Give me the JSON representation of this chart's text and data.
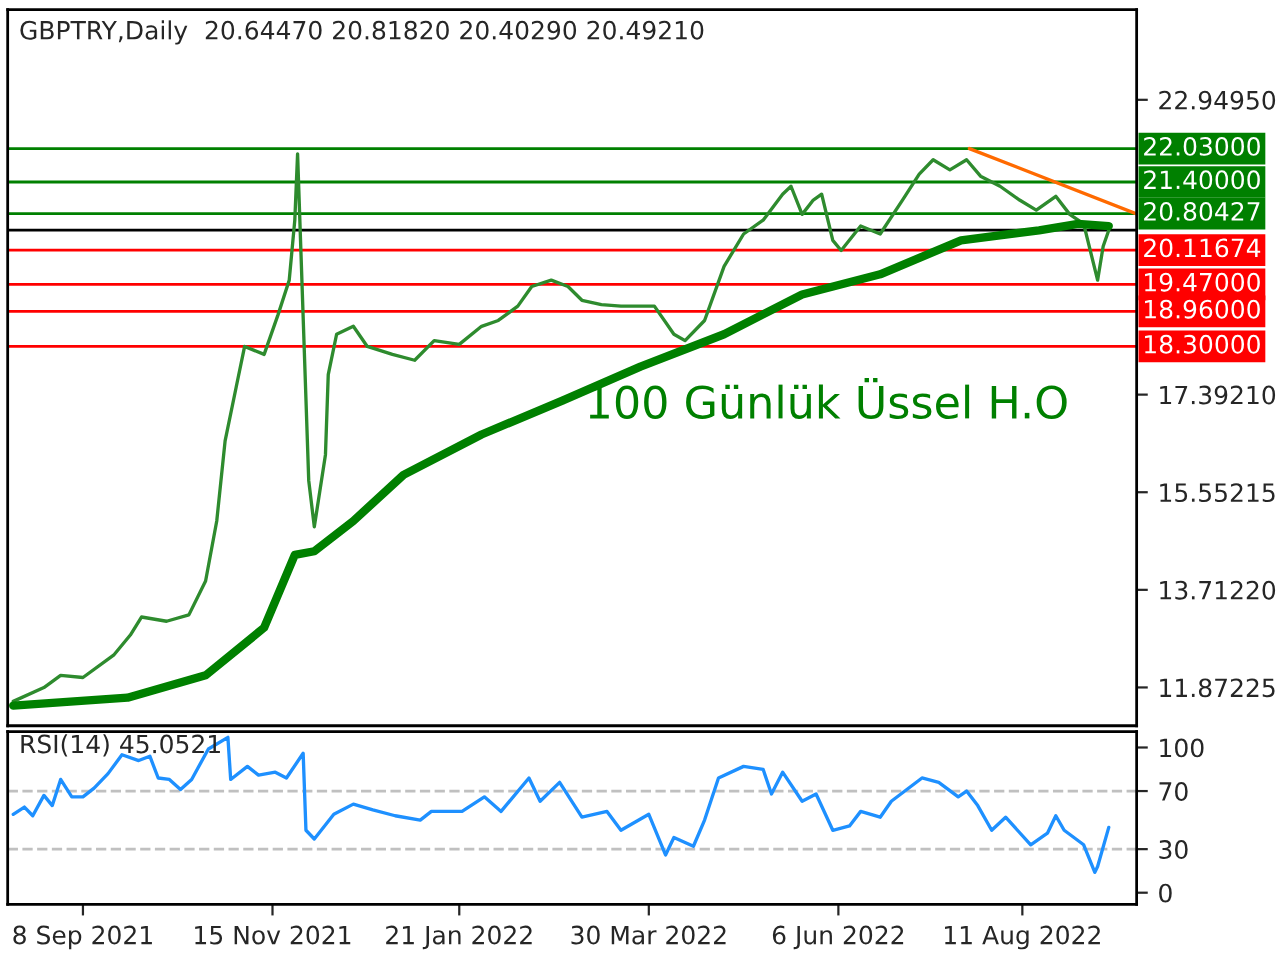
{
  "chart_data": [
    {
      "type": "line",
      "title": "GBPTRY,Daily  20.64470 20.81820 20.40290 20.49210",
      "xlim": [
        "2021-08-12",
        "2022-09-21"
      ],
      "ylim": [
        11.15,
        24.65
      ],
      "tick_labels": "y",
      "grid": false,
      "legend": false,
      "yticks": [
        {
          "value": 22.9495,
          "label": "22.94950"
        },
        {
          "value": 17.3921,
          "label": "17.39210"
        },
        {
          "value": 15.55215,
          "label": "15.55215"
        },
        {
          "value": 13.7122,
          "label": "13.71220"
        },
        {
          "value": 11.87225,
          "label": "11.87225"
        }
      ],
      "series": [
        {
          "color": "#2e8b2e",
          "x": [
            "2021-08-14",
            "2021-08-25",
            "2021-08-31",
            "2021-09-08",
            "2021-09-19",
            "2021-09-25",
            "2021-09-29",
            "2021-10-08",
            "2021-10-16",
            "2021-10-22",
            "2021-10-26",
            "2021-10-29",
            "2021-11-02",
            "2021-11-05",
            "2021-11-12",
            "2021-11-17",
            "2021-11-21",
            "2021-11-23",
            "2021-11-24",
            "2021-11-28",
            "2021-11-30",
            "2021-12-04",
            "2021-12-05",
            "2021-12-08",
            "2021-12-14",
            "2021-12-19",
            "2021-12-28",
            "2022-01-05",
            "2022-01-12",
            "2022-01-21",
            "2022-01-29",
            "2022-02-04",
            "2022-02-11",
            "2022-02-16",
            "2022-02-23",
            "2022-03-01",
            "2022-03-06",
            "2022-03-13",
            "2022-03-20",
            "2022-04-01",
            "2022-04-08",
            "2022-04-12",
            "2022-04-19",
            "2022-04-26",
            "2022-05-03",
            "2022-05-10",
            "2022-05-17",
            "2022-05-20",
            "2022-05-24",
            "2022-05-28",
            "2022-05-31",
            "2022-06-04",
            "2022-06-07",
            "2022-06-14",
            "2022-06-21",
            "2022-06-29",
            "2022-07-05",
            "2022-07-10",
            "2022-07-16",
            "2022-07-22",
            "2022-07-27",
            "2022-08-03",
            "2022-08-10",
            "2022-08-16",
            "2022-08-23",
            "2022-08-28",
            "2022-09-02",
            "2022-09-07",
            "2022-09-09",
            "2022-09-11"
          ],
          "values": [
            11.61,
            11.87,
            12.1,
            12.06,
            12.48,
            12.86,
            13.2,
            13.12,
            13.24,
            13.88,
            15.01,
            16.52,
            17.54,
            18.3,
            18.15,
            18.9,
            19.55,
            20.68,
            21.93,
            15.77,
            14.9,
            16.26,
            17.77,
            18.53,
            18.68,
            18.3,
            18.15,
            18.04,
            18.41,
            18.34,
            18.68,
            18.79,
            19.06,
            19.43,
            19.55,
            19.43,
            19.17,
            19.09,
            19.06,
            19.06,
            18.53,
            18.41,
            18.79,
            19.81,
            20.42,
            20.68,
            21.17,
            21.32,
            20.79,
            21.06,
            21.17,
            20.3,
            20.11,
            20.57,
            20.42,
            21.06,
            21.55,
            21.82,
            21.63,
            21.82,
            21.51,
            21.32,
            21.06,
            20.87,
            21.13,
            20.79,
            20.61,
            19.55,
            20.19,
            20.49
          ]
        },
        {
          "name": "100 Günlük Üssel H.O",
          "color": "#008000",
          "x": [
            "2021-08-14",
            "2021-09-24",
            "2021-10-22",
            "2021-11-12",
            "2021-11-23",
            "2021-11-30",
            "2021-12-14",
            "2022-01-01",
            "2022-01-29",
            "2022-02-27",
            "2022-03-27",
            "2022-04-26",
            "2022-05-24",
            "2022-06-21",
            "2022-07-20",
            "2022-08-17",
            "2022-08-31",
            "2022-09-11"
          ],
          "values": [
            11.53,
            11.68,
            12.1,
            13.0,
            14.37,
            14.44,
            15.01,
            15.88,
            16.64,
            17.28,
            17.92,
            18.53,
            19.28,
            19.66,
            20.3,
            20.49,
            20.61,
            20.57
          ]
        },
        {
          "color": "#ff6a00",
          "x": [
            "2022-07-23",
            "2022-09-21"
          ],
          "values": [
            22.03,
            20.8
          ]
        }
      ],
      "ref_lines": [
        {
          "axis": "y",
          "value": 22.03,
          "label": "22.03000",
          "color": "#008000"
        },
        {
          "axis": "y",
          "value": 21.4,
          "label": "21.40000",
          "color": "#008000"
        },
        {
          "axis": "y",
          "value": 20.80427,
          "label": "20.80427",
          "color": "#008000"
        },
        {
          "axis": "y",
          "value": 20.4921,
          "label": null,
          "color": "#000000"
        },
        {
          "axis": "y",
          "value": 20.11674,
          "label": "20.11674",
          "color": "#ff0000"
        },
        {
          "axis": "y",
          "value": 19.47,
          "label": "19.47000",
          "color": "#ff0000"
        },
        {
          "axis": "y",
          "value": 18.96,
          "label": "18.96000",
          "color": "#ff0000"
        },
        {
          "axis": "y",
          "value": 18.3,
          "label": "18.30000",
          "color": "#ff0000"
        }
      ]
    },
    {
      "type": "line",
      "title": "RSI(14) 45.0521",
      "xlim": [
        "2021-08-12",
        "2022-09-21"
      ],
      "ylim": [
        -8,
        111
      ],
      "yticks": [
        100,
        70,
        30,
        0
      ],
      "grid": false,
      "legend": false,
      "xticks": [
        {
          "value": "2021-09-08",
          "label": "8 Sep 2021"
        },
        {
          "value": "2021-11-15",
          "label": "15 Nov 2021"
        },
        {
          "value": "2022-01-21",
          "label": "21 Jan 2022"
        },
        {
          "value": "2022-03-30",
          "label": "30 Mar 2022"
        },
        {
          "value": "2022-06-06",
          "label": "6 Jun 2022"
        },
        {
          "value": "2022-08-11",
          "label": "11 Aug 2022"
        }
      ],
      "series": [
        {
          "color": "#1e90ff",
          "x": [
            "2021-08-14",
            "2021-08-18",
            "2021-08-21",
            "2021-08-25",
            "2021-08-28",
            "2021-08-31",
            "2021-09-04",
            "2021-09-08",
            "2021-09-12",
            "2021-09-17",
            "2021-09-22",
            "2021-09-28",
            "2021-10-02",
            "2021-10-05",
            "2021-10-09",
            "2021-10-13",
            "2021-10-17",
            "2021-10-23",
            "2021-10-30",
            "2021-10-31",
            "2021-11-06",
            "2021-11-10",
            "2021-11-16",
            "2021-11-20",
            "2021-11-26",
            "2021-11-27",
            "2021-11-30",
            "2021-12-07",
            "2021-12-14",
            "2021-12-21",
            "2021-12-29",
            "2022-01-07",
            "2022-01-11",
            "2022-01-22",
            "2022-01-30",
            "2022-02-05",
            "2022-02-15",
            "2022-02-19",
            "2022-02-26",
            "2022-03-06",
            "2022-03-15",
            "2022-03-20",
            "2022-03-30",
            "2022-04-05",
            "2022-04-08",
            "2022-04-15",
            "2022-04-19",
            "2022-04-24",
            "2022-05-03",
            "2022-05-10",
            "2022-05-13",
            "2022-05-17",
            "2022-05-24",
            "2022-05-29",
            "2022-06-04",
            "2022-06-10",
            "2022-06-14",
            "2022-06-21",
            "2022-06-25",
            "2022-07-06",
            "2022-07-12",
            "2022-07-19",
            "2022-07-22",
            "2022-07-26",
            "2022-07-31",
            "2022-08-05",
            "2022-08-14",
            "2022-08-20",
            "2022-08-23",
            "2022-08-26",
            "2022-09-02",
            "2022-09-06",
            "2022-09-07",
            "2022-09-11"
          ],
          "values": [
            54,
            59,
            53,
            67,
            60,
            78,
            66,
            66,
            72,
            82,
            95,
            91,
            94,
            79,
            78,
            71,
            78,
            99,
            107,
            78,
            87,
            81,
            83,
            79,
            96,
            43,
            37,
            54,
            61,
            57,
            53,
            50,
            56,
            56,
            66,
            56,
            79,
            63,
            76,
            52,
            56,
            43,
            54,
            26,
            38,
            32,
            50,
            79,
            87,
            85,
            68,
            83,
            63,
            68,
            43,
            46,
            56,
            52,
            63,
            79,
            76,
            66,
            70,
            60,
            43,
            52,
            33,
            41,
            53,
            43,
            33,
            14,
            18,
            45
          ]
        }
      ],
      "ref_lines": [
        {
          "axis": "y",
          "value": 70,
          "label": null,
          "color": "#c0c0c0",
          "line_style": "dashed"
        },
        {
          "axis": "y",
          "value": 30,
          "label": null,
          "color": "#c0c0c0",
          "line_style": "dashed"
        }
      ]
    }
  ]
}
